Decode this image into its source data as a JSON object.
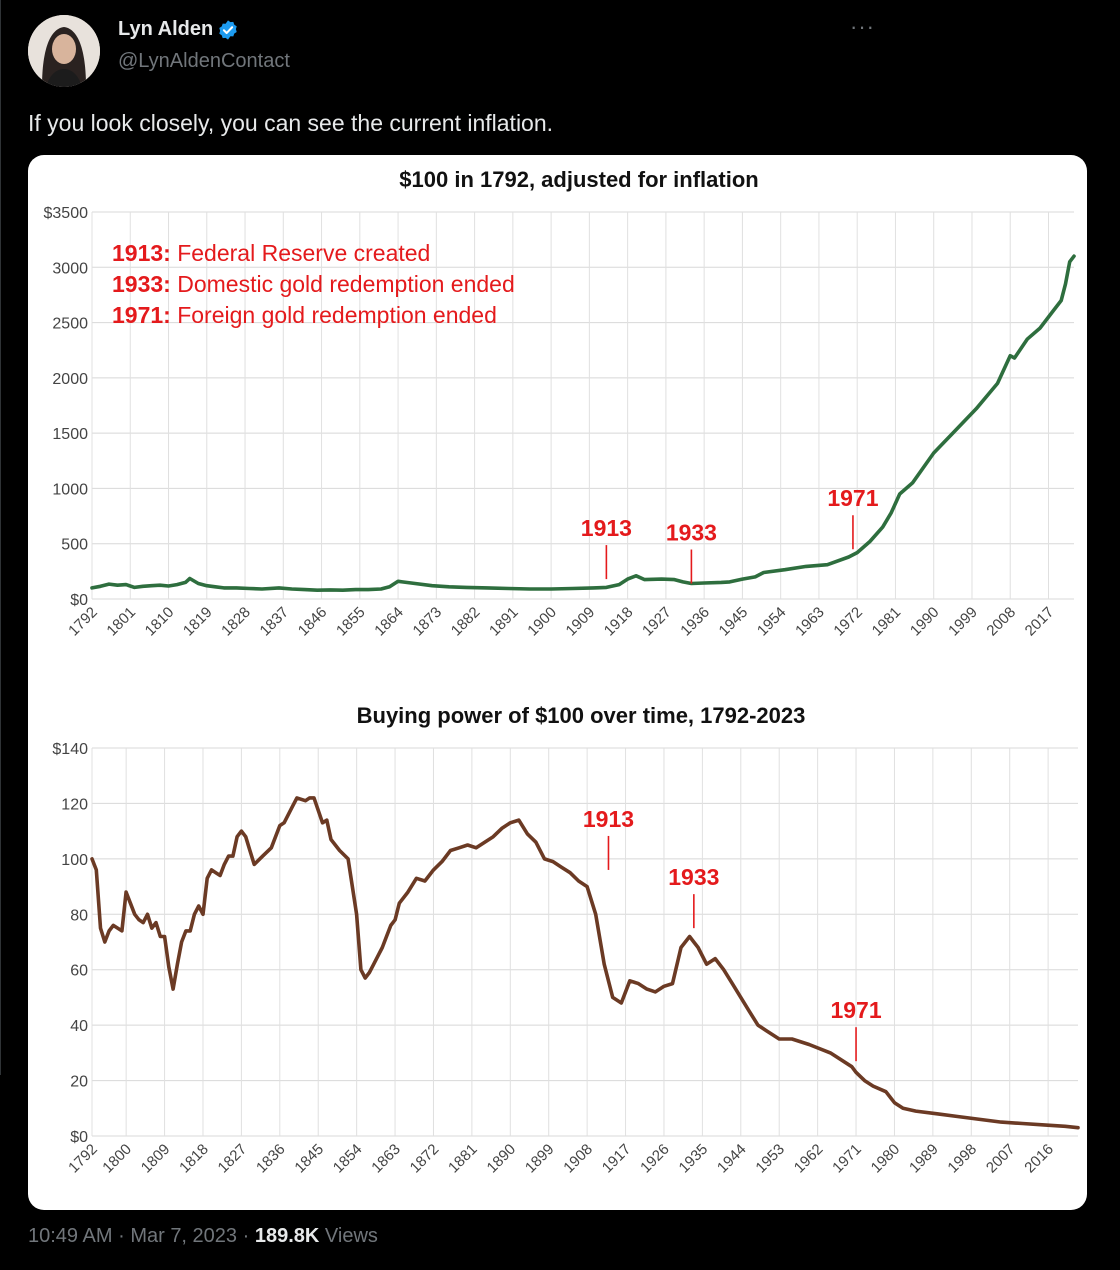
{
  "tweet": {
    "author_name": "Lyn Alden",
    "handle": "@LynAldenContact",
    "more_icon": "···",
    "text": "If you look closely, you can see the current inflation.",
    "time": "10:49 AM",
    "sep1": "·",
    "date": "Mar 7, 2023",
    "sep2": "·",
    "views_count": "189.8K",
    "views_label": "Views"
  },
  "colors": {
    "inflation_line": "#2e6e3e",
    "buying_line": "#6b3a24",
    "annotation": "#e41a1c",
    "verified": "#1d9bf0"
  },
  "chart_data": [
    {
      "type": "line",
      "title": "$100 in 1792, adjusted for inflation",
      "xlabel": "",
      "ylabel": "",
      "ylim": [
        0,
        3500
      ],
      "yticks": [
        "$0",
        "500",
        "1000",
        "1500",
        "2000",
        "2500",
        "3000",
        "$3500"
      ],
      "ytick_values": [
        0,
        500,
        1000,
        1500,
        2000,
        2500,
        3000,
        3500
      ],
      "xlim": [
        1792,
        2023
      ],
      "xticks": [
        "1792",
        "1801",
        "1810",
        "1819",
        "1828",
        "1837",
        "1846",
        "1855",
        "1864",
        "1873",
        "1882",
        "1891",
        "1900",
        "1909",
        "1918",
        "1927",
        "1936",
        "1945",
        "1954",
        "1963",
        "1972",
        "1981",
        "1990",
        "1999",
        "2008",
        "2017"
      ],
      "legend_notes": [
        {
          "year": "1913:",
          "text": "Federal Reserve created"
        },
        {
          "year": "1933:",
          "text": "Domestic gold redemption ended"
        },
        {
          "year": "1971:",
          "text": "Foreign gold redemption ended"
        }
      ],
      "annotations": [
        {
          "label": "1913",
          "year": 1913,
          "value": 180
        },
        {
          "label": "1933",
          "year": 1933,
          "value": 140
        },
        {
          "label": "1971",
          "year": 1971,
          "value": 450
        }
      ],
      "series": [
        {
          "name": "Inflation-adjusted $100",
          "x": [
            1792,
            1794,
            1796,
            1798,
            1800,
            1802,
            1804,
            1806,
            1808,
            1810,
            1812,
            1814,
            1815,
            1817,
            1819,
            1821,
            1823,
            1826,
            1829,
            1832,
            1836,
            1839,
            1842,
            1845,
            1848,
            1851,
            1854,
            1857,
            1860,
            1862,
            1864,
            1865,
            1868,
            1872,
            1876,
            1880,
            1885,
            1890,
            1895,
            1900,
            1905,
            1910,
            1913,
            1916,
            1918,
            1920,
            1922,
            1926,
            1929,
            1931,
            1933,
            1936,
            1940,
            1942,
            1945,
            1948,
            1950,
            1955,
            1960,
            1965,
            1970,
            1972,
            1975,
            1978,
            1980,
            1982,
            1985,
            1990,
            1995,
            2000,
            2005,
            2008,
            2009,
            2012,
            2015,
            2018,
            2020,
            2021,
            2022,
            2023
          ],
          "values": [
            100,
            115,
            135,
            125,
            130,
            105,
            115,
            120,
            125,
            118,
            130,
            150,
            185,
            140,
            120,
            110,
            100,
            100,
            95,
            90,
            100,
            90,
            85,
            80,
            82,
            80,
            85,
            85,
            90,
            110,
            160,
            155,
            140,
            120,
            110,
            105,
            100,
            95,
            90,
            90,
            95,
            100,
            105,
            130,
            180,
            210,
            175,
            180,
            175,
            155,
            140,
            145,
            150,
            155,
            180,
            200,
            240,
            265,
            295,
            310,
            380,
            420,
            520,
            650,
            780,
            950,
            1050,
            1320,
            1520,
            1720,
            1950,
            2200,
            2180,
            2350,
            2450,
            2600,
            2700,
            2850,
            3050,
            3100
          ]
        }
      ]
    },
    {
      "type": "line",
      "title": "Buying power of $100 over time, 1792-2023",
      "xlabel": "",
      "ylabel": "",
      "ylim": [
        0,
        140
      ],
      "yticks": [
        "$0",
        "20",
        "40",
        "60",
        "80",
        "100",
        "120",
        "$140"
      ],
      "ytick_values": [
        0,
        20,
        40,
        60,
        80,
        100,
        120,
        140
      ],
      "xlim": [
        1792,
        2023
      ],
      "xticks": [
        "1792",
        "1800",
        "1809",
        "1818",
        "1827",
        "1836",
        "1845",
        "1854",
        "1863",
        "1872",
        "1881",
        "1890",
        "1899",
        "1908",
        "1917",
        "1926",
        "1935",
        "1944",
        "1953",
        "1962",
        "1971",
        "1980",
        "1989",
        "1998",
        "2007",
        "2016"
      ],
      "annotations": [
        {
          "label": "1913",
          "year": 1913,
          "value": 96
        },
        {
          "label": "1933",
          "year": 1933,
          "value": 75
        },
        {
          "label": "1971",
          "year": 1971,
          "value": 27
        }
      ],
      "series": [
        {
          "name": "Buying power of $100",
          "x": [
            1792,
            1793,
            1794,
            1795,
            1796,
            1797,
            1798,
            1799,
            1800,
            1801,
            1802,
            1803,
            1804,
            1805,
            1806,
            1807,
            1808,
            1809,
            1810,
            1811,
            1812,
            1813,
            1814,
            1815,
            1816,
            1817,
            1818,
            1819,
            1820,
            1821,
            1822,
            1823,
            1824,
            1825,
            1826,
            1827,
            1828,
            1829,
            1830,
            1832,
            1834,
            1836,
            1837,
            1839,
            1840,
            1842,
            1843,
            1844,
            1846,
            1847,
            1848,
            1850,
            1852,
            1854,
            1855,
            1856,
            1857,
            1858,
            1860,
            1861,
            1862,
            1863,
            1864,
            1866,
            1868,
            1870,
            1872,
            1874,
            1876,
            1878,
            1880,
            1882,
            1884,
            1886,
            1888,
            1890,
            1892,
            1894,
            1896,
            1898,
            1900,
            1902,
            1904,
            1906,
            1908,
            1910,
            1912,
            1914,
            1916,
            1918,
            1920,
            1922,
            1924,
            1926,
            1928,
            1930,
            1932,
            1933,
            1934,
            1936,
            1938,
            1940,
            1942,
            1944,
            1946,
            1948,
            1950,
            1953,
            1956,
            1960,
            1965,
            1970,
            1971,
            1973,
            1975,
            1978,
            1980,
            1982,
            1985,
            1990,
            1995,
            2000,
            2005,
            2010,
            2015,
            2020,
            2023
          ],
          "values": [
            100,
            96,
            75,
            70,
            74,
            76,
            75,
            74,
            88,
            84,
            80,
            78,
            77,
            80,
            75,
            77,
            72,
            72,
            61,
            53,
            62,
            70,
            74,
            74,
            80,
            83,
            80,
            93,
            96,
            95,
            94,
            98,
            101,
            101,
            108,
            110,
            108,
            103,
            98,
            101,
            104,
            112,
            113,
            119,
            122,
            121,
            122,
            122,
            113,
            114,
            107,
            103,
            100,
            80,
            60,
            57,
            59,
            62,
            68,
            72,
            76,
            78,
            84,
            88,
            93,
            92,
            96,
            99,
            103,
            104,
            105,
            104,
            106,
            108,
            111,
            113,
            114,
            109,
            106,
            100,
            99,
            97,
            95,
            92,
            90,
            80,
            62,
            50,
            48,
            56,
            55,
            53,
            52,
            54,
            55,
            68,
            72,
            70,
            68,
            62,
            64,
            60,
            55,
            50,
            45,
            40,
            38,
            35,
            35,
            33,
            30,
            25,
            23,
            20,
            18,
            16,
            12,
            10,
            9,
            8,
            7,
            6,
            5,
            4.5,
            4,
            3.5,
            3
          ]
        }
      ]
    }
  ]
}
